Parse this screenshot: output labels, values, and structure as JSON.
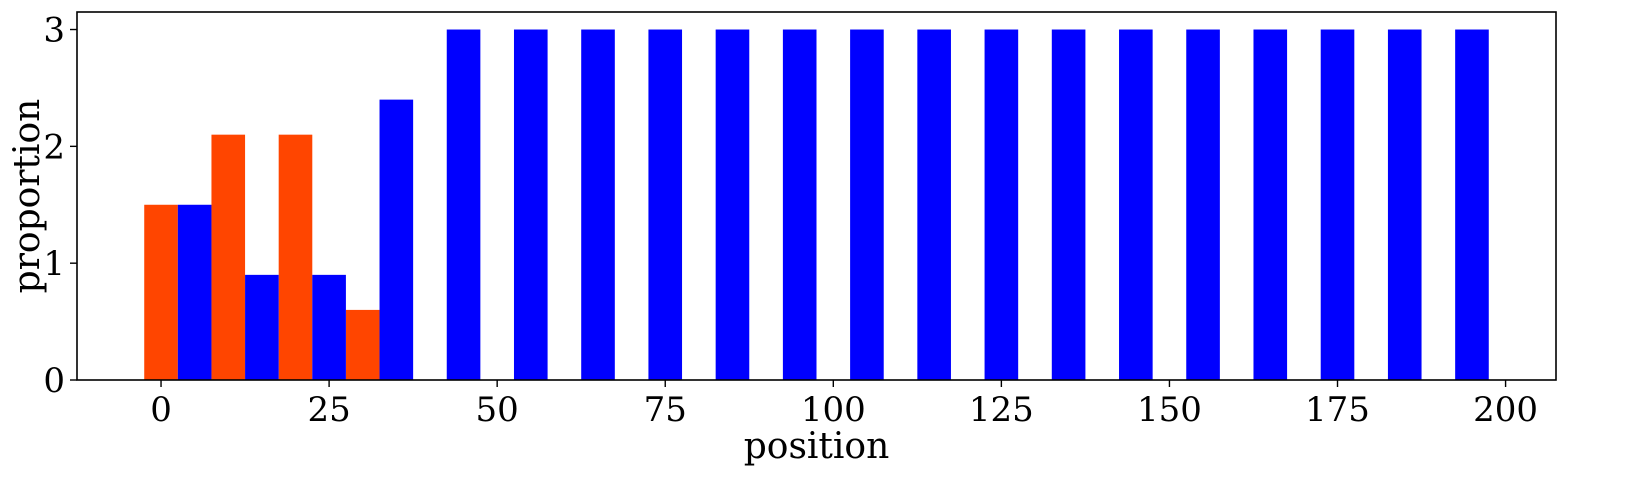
{
  "chart_data": {
    "type": "bar",
    "title": "",
    "xlabel": "position",
    "ylabel": "proportion",
    "xlim": [
      -12.5,
      207.5
    ],
    "ylim": [
      0,
      3.15
    ],
    "xticks": [
      0,
      25,
      50,
      75,
      100,
      125,
      150,
      175,
      200
    ],
    "yticks": [
      0,
      1,
      2,
      3
    ],
    "bar_width": 5,
    "grid": false,
    "legend": "none",
    "series": [
      {
        "color": "#ff4500",
        "points": [
          {
            "x": 0,
            "y": 1.5
          },
          {
            "x": 10,
            "y": 2.1
          },
          {
            "x": 20,
            "y": 2.1
          },
          {
            "x": 30,
            "y": 0.6
          }
        ]
      },
      {
        "color": "#0000ff",
        "points": [
          {
            "x": 5,
            "y": 1.5
          },
          {
            "x": 15,
            "y": 0.9
          },
          {
            "x": 25,
            "y": 0.9
          },
          {
            "x": 35,
            "y": 2.4
          },
          {
            "x": 45,
            "y": 3.0
          },
          {
            "x": 55,
            "y": 3.0
          },
          {
            "x": 65,
            "y": 3.0
          },
          {
            "x": 75,
            "y": 3.0
          },
          {
            "x": 85,
            "y": 3.0
          },
          {
            "x": 95,
            "y": 3.0
          },
          {
            "x": 105,
            "y": 3.0
          },
          {
            "x": 115,
            "y": 3.0
          },
          {
            "x": 125,
            "y": 3.0
          },
          {
            "x": 135,
            "y": 3.0
          },
          {
            "x": 145,
            "y": 3.0
          },
          {
            "x": 155,
            "y": 3.0
          },
          {
            "x": 165,
            "y": 3.0
          },
          {
            "x": 175,
            "y": 3.0
          },
          {
            "x": 185,
            "y": 3.0
          },
          {
            "x": 195,
            "y": 3.0
          }
        ]
      }
    ]
  }
}
